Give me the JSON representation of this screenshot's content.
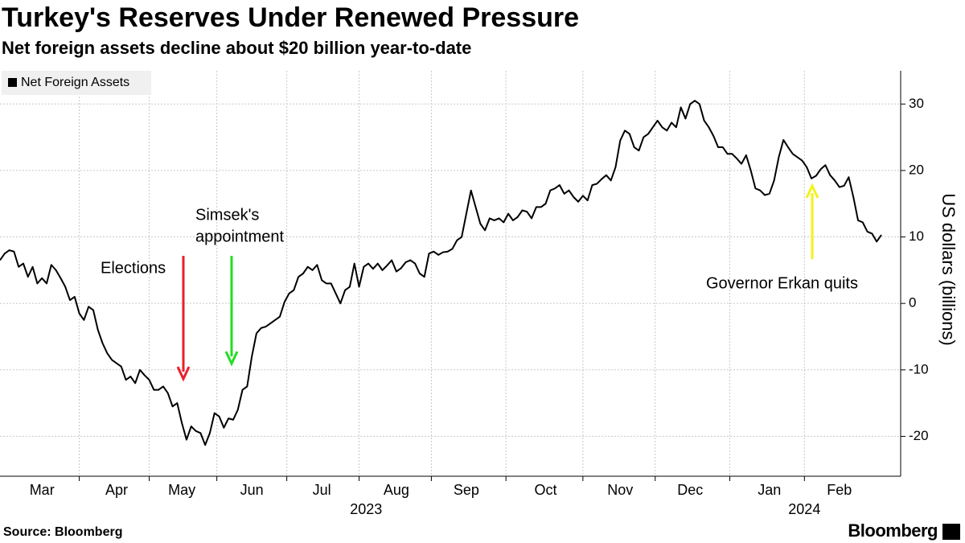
{
  "chart_data": {
    "type": "line",
    "title": "Turkey's Reserves Under Renewed Pressure",
    "subtitle": "Net foreign assets decline about $20 billion year-to-date",
    "source": "Source: Bloomberg",
    "logo": "Bloomberg",
    "y_label": "US dollars (billions)",
    "ylim": [
      -26,
      35
    ],
    "yticks": [
      -20,
      -10,
      0,
      10,
      20,
      30
    ],
    "grid": true,
    "legend": "top-left",
    "categories": [
      null,
      null,
      null,
      null,
      null,
      null,
      null,
      null,
      null,
      "Mar",
      null,
      null,
      null,
      null,
      null,
      null,
      null,
      null,
      null,
      null,
      null,
      null,
      null,
      null,
      null,
      "Apr",
      null,
      null,
      null,
      null,
      null,
      null,
      null,
      null,
      null,
      null,
      null,
      null,
      null,
      "May",
      null,
      null,
      null,
      null,
      null,
      null,
      null,
      null,
      null,
      null,
      null,
      null,
      null,
      null,
      "Jun",
      null,
      null,
      null,
      null,
      null,
      null,
      null,
      null,
      null,
      null,
      null,
      null,
      null,
      null,
      "Jul",
      null,
      null,
      null,
      null,
      null,
      null,
      null,
      null,
      null,
      null,
      null,
      null,
      null,
      null,
      null,
      "Aug",
      null,
      null,
      null,
      null,
      null,
      null,
      null,
      null,
      null,
      null,
      null,
      null,
      null,
      null,
      "Sep",
      null,
      null,
      null,
      null,
      null,
      null,
      null,
      null,
      null,
      null,
      null,
      null,
      null,
      null,
      null,
      null,
      "Oct",
      null,
      null,
      null,
      null,
      null,
      null,
      null,
      null,
      null,
      null,
      null,
      null,
      null,
      null,
      null,
      "Nov",
      null,
      null,
      null,
      null,
      null,
      null,
      null,
      null,
      null,
      null,
      null,
      null,
      null,
      null,
      "Dec",
      null,
      null,
      null,
      null,
      null,
      null,
      null,
      null,
      null,
      null,
      null,
      null,
      null,
      null,
      null,
      null,
      "Jan",
      null,
      null,
      null,
      null,
      null,
      null,
      null,
      null,
      null,
      null,
      null,
      null,
      null,
      null,
      "Feb",
      null,
      null,
      null,
      null,
      null,
      null,
      null,
      null,
      null
    ],
    "x_groups": [
      {
        "label": "2023",
        "span": [
          "Mar",
          "Dec"
        ]
      },
      {
        "label": "2024",
        "span": [
          "Jan",
          "Feb"
        ]
      }
    ],
    "series": [
      {
        "name": "Net Foreign Assets",
        "color": "#000000",
        "values": [
          6.5,
          7.5,
          8,
          7.8,
          5.5,
          6,
          4,
          5.5,
          3,
          3.8,
          3,
          5.8,
          5,
          3.8,
          2.5,
          0.5,
          1,
          -1.5,
          -2.5,
          -0.5,
          -1,
          -4,
          -6,
          -7.5,
          -8.5,
          -9,
          -9.5,
          -11.5,
          -11,
          -12,
          -10,
          -10.8,
          -11.5,
          -13,
          -13,
          -12.5,
          -13.5,
          -15.5,
          -15,
          -18,
          -20.5,
          -18.5,
          -19.2,
          -19.5,
          -21.3,
          -19.5,
          -16.5,
          -17,
          -18.7,
          -17.3,
          -17.5,
          -16,
          -13,
          -12.5,
          -8,
          -4.5,
          -3.7,
          -3.5,
          -3,
          -2.5,
          -2,
          0.2,
          1.5,
          2,
          4,
          4.5,
          5.5,
          5,
          5.8,
          3.5,
          3,
          3,
          1.5,
          0,
          2,
          2.5,
          6,
          2.5,
          5.5,
          6,
          5.2,
          6,
          5,
          5.7,
          6.5,
          4.8,
          5.3,
          6.2,
          6.5,
          6,
          4.5,
          4,
          7.5,
          7.8,
          7.3,
          7.7,
          7.8,
          8.2,
          9.5,
          10,
          13.5,
          17,
          14.5,
          12,
          11,
          12.8,
          12.5,
          12.8,
          12.2,
          13.5,
          12.5,
          13,
          14,
          13.8,
          12.8,
          14.5,
          14.5,
          15,
          17,
          17.3,
          17.8,
          16.5,
          17,
          16,
          15.3,
          16.2,
          15.5,
          17.8,
          18,
          18.7,
          19.3,
          18.5,
          20.5,
          24.5,
          26,
          25.5,
          23.5,
          23,
          25,
          25.5,
          26.5,
          27.5,
          26.5,
          26,
          27.2,
          26.5,
          29.5,
          27.8,
          30,
          30.5,
          30,
          27.5,
          26.5,
          25.2,
          23.5,
          23.5,
          22.5,
          22.5,
          21.8,
          21,
          22.3,
          20,
          17.3,
          17,
          16.3,
          16.5,
          18.5,
          22,
          24.6,
          23.5,
          22.5,
          22,
          21.5,
          20.5,
          18.8,
          19.2,
          20.2,
          20.8,
          19.3,
          18.5,
          17.5,
          17.7,
          19,
          16,
          12.5,
          12.2,
          10.8,
          10.5,
          9.3,
          10.3
        ]
      }
    ],
    "annotations": [
      {
        "lines": [
          "Elections"
        ],
        "color": "#e8314a"
      },
      {
        "lines": [
          "Simsek's",
          "appointment"
        ],
        "color": "#7dd81f"
      },
      {
        "lines": [
          "Governor Erkan quits"
        ],
        "color": "#f2f21a"
      }
    ]
  }
}
